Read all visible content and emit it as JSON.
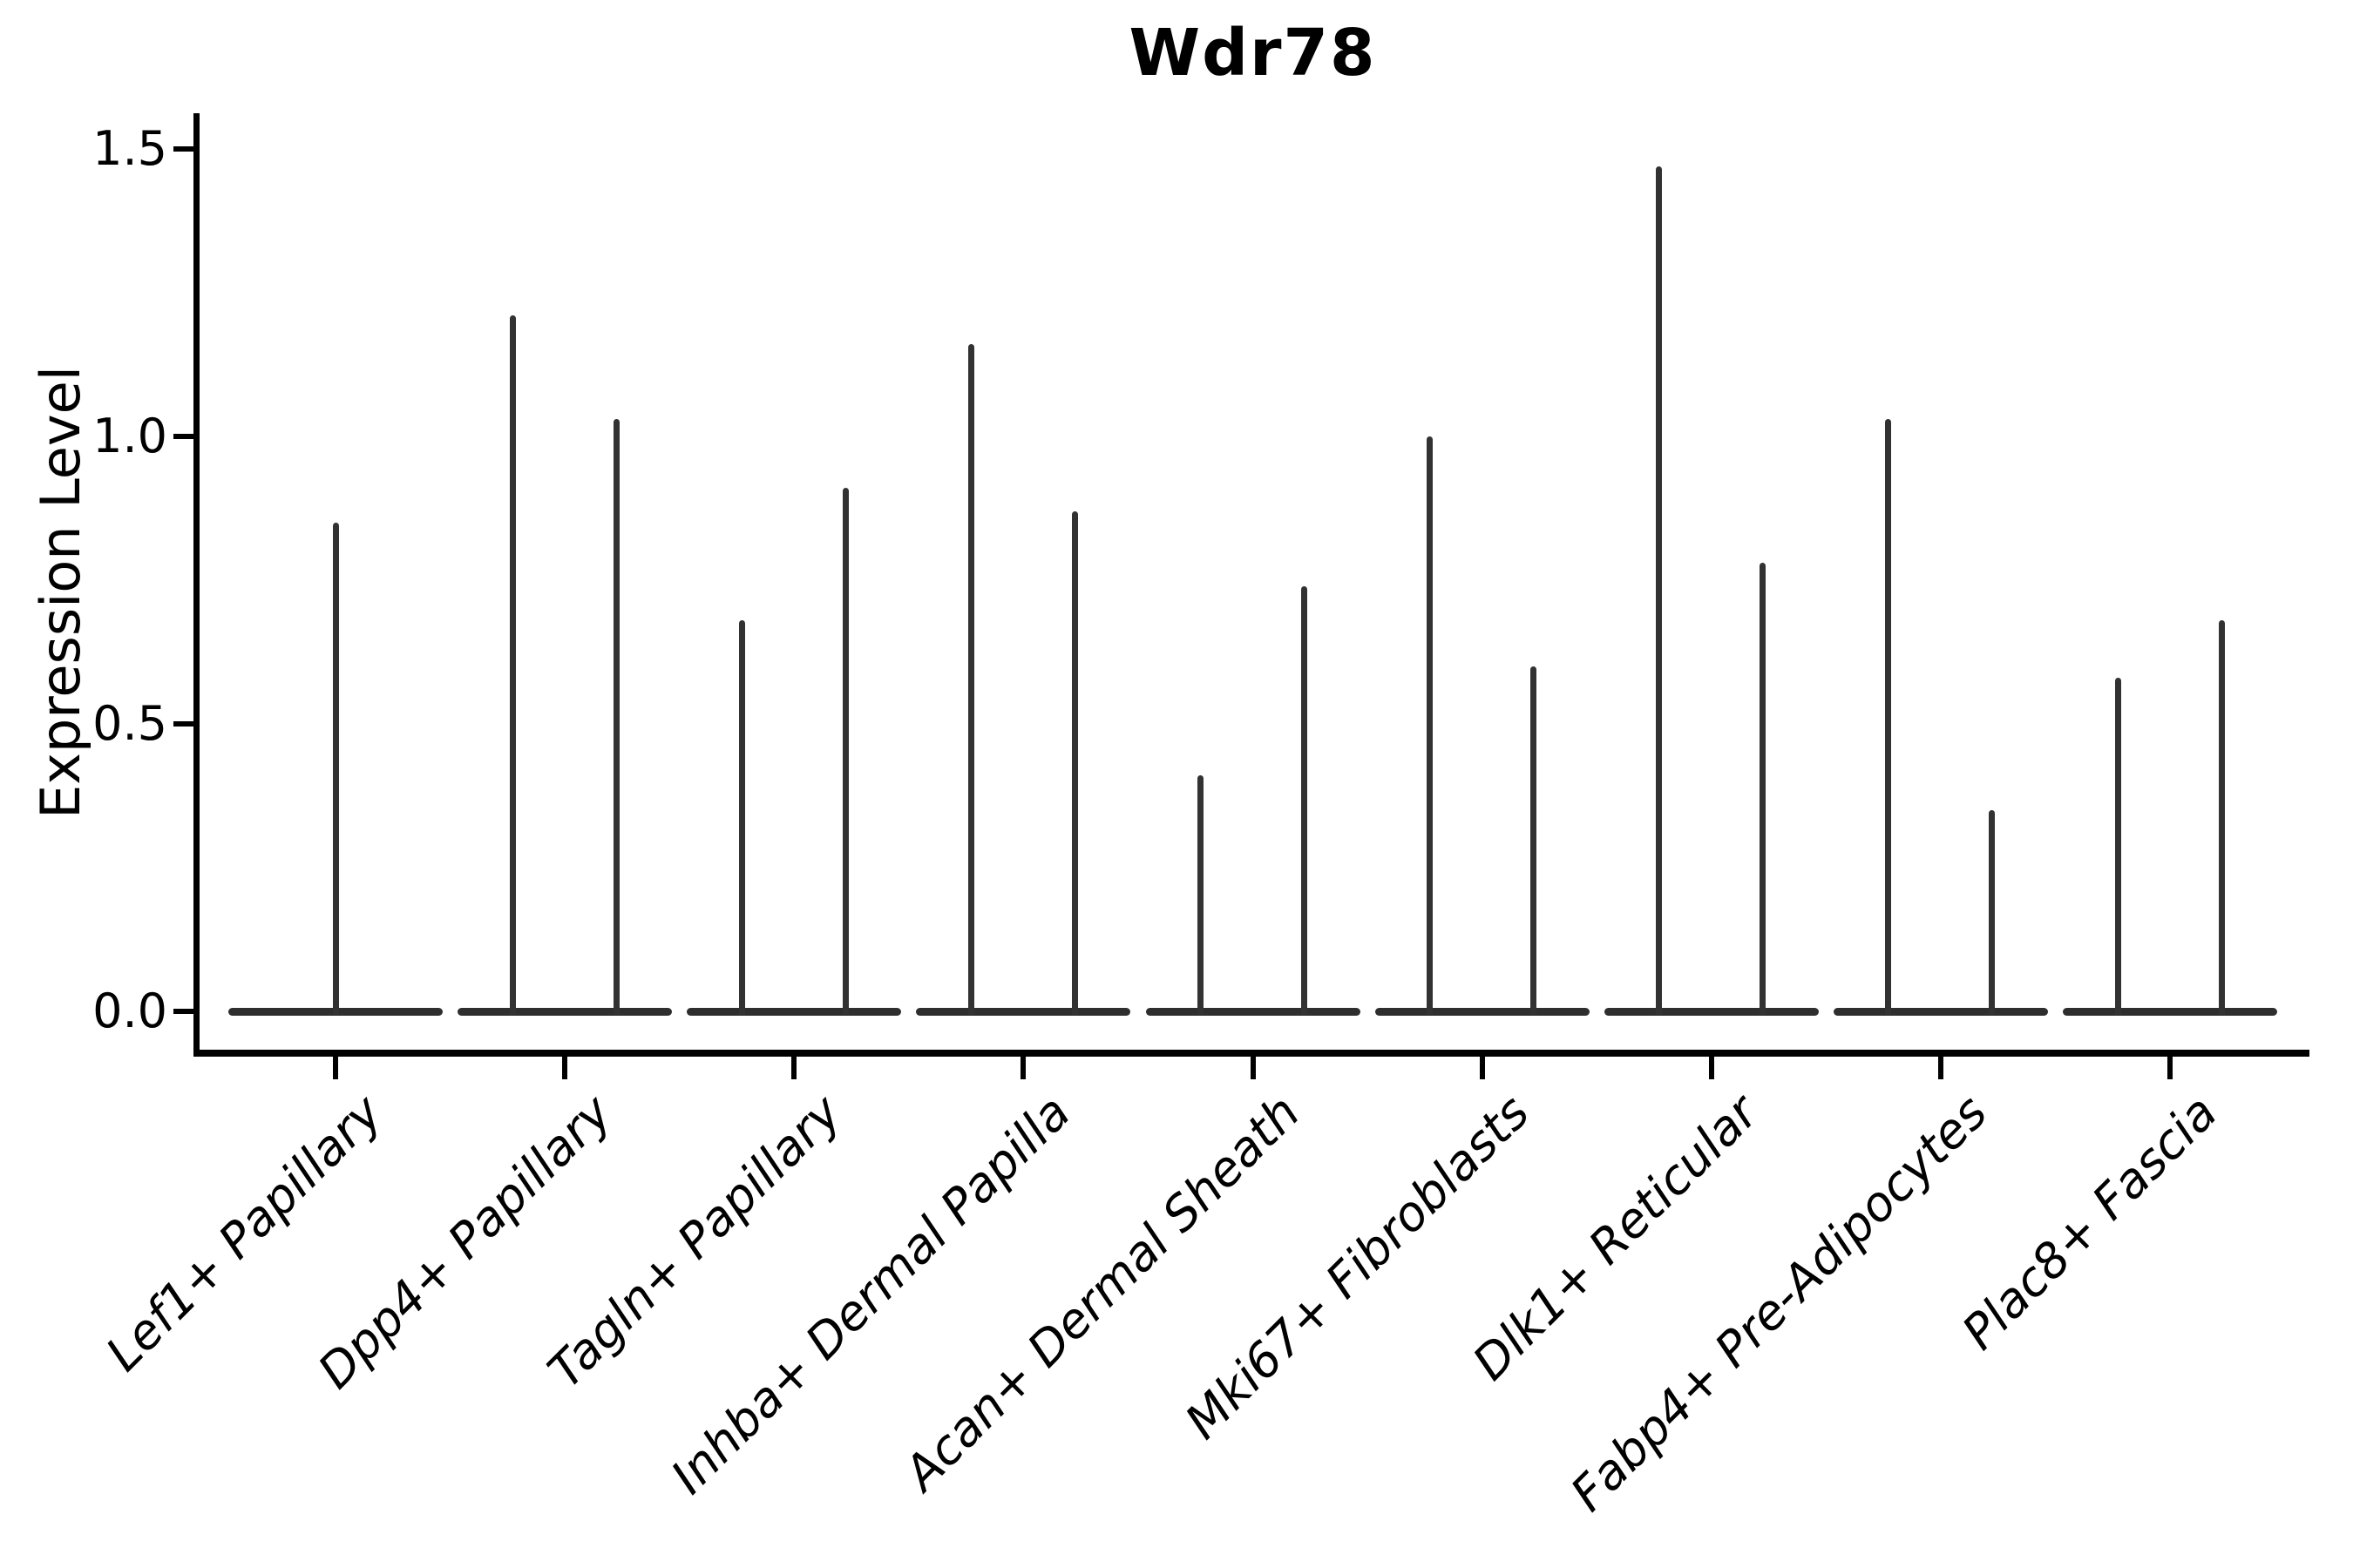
{
  "figure": {
    "title": "Wdr78"
  },
  "axes": {
    "y_label": "Expression Level",
    "y_tick_labels": [
      "0.0",
      "0.5",
      "1.0",
      "1.5"
    ],
    "x_tick_labels": [
      "Lef1+ Papillary",
      "Dpp4+ Papillary",
      "Tagln+ Papillary",
      "Inhba+ Dermal Papilla",
      "Acan+ Dermal Sheath",
      "Mki67+ Fibroblasts",
      "Dlk1+ Reticular",
      "Fabp4+ Pre-Adipocytes",
      "Plac8+ Fascia"
    ]
  },
  "colors": {
    "text": "#000000",
    "axis": "#000000",
    "violin_line": "#323232",
    "background": "#ffffff"
  },
  "chart_data": {
    "type": "violin",
    "title": "Wdr78",
    "xlabel": "",
    "ylabel": "Expression Level",
    "ylim": [
      0,
      1.55
    ],
    "y_ticks": [
      0.0,
      0.5,
      1.0,
      1.5
    ],
    "grid": false,
    "legend_position": "none",
    "style_note": "Near-zero-width violins: each appears as a flat dark bar at y=0 with thin vertical spikes rising to the maximum expression value; categories 2-9 contain a pair of sub-violins (two spikes), category 1 a single centered spike; x tick labels italic, rotated 45 degrees",
    "categories": [
      "Lef1+ Papillary",
      "Dpp4+ Papillary",
      "Tagln+ Papillary",
      "Inhba+ Dermal Papilla",
      "Acan+ Dermal Sheath",
      "Mki67+ Fibroblasts",
      "Dlk1+ Reticular",
      "Fabp4+ Pre-Adipocytes",
      "Plac8+ Fascia"
    ],
    "violins": [
      {
        "category": "Lef1+ Papillary",
        "spike_values": [
          0.85
        ]
      },
      {
        "category": "Dpp4+ Papillary",
        "spike_values": [
          1.21,
          1.03
        ]
      },
      {
        "category": "Tagln+ Papillary",
        "spike_values": [
          0.68,
          0.91
        ]
      },
      {
        "category": "Inhba+ Dermal Papilla",
        "spike_values": [
          1.16,
          0.87
        ]
      },
      {
        "category": "Acan+ Dermal Sheath",
        "spike_values": [
          0.41,
          0.74
        ]
      },
      {
        "category": "Mki67+ Fibroblasts",
        "spike_values": [
          1.0,
          0.6
        ]
      },
      {
        "category": "Dlk1+ Reticular",
        "spike_values": [
          1.47,
          0.78
        ]
      },
      {
        "category": "Fabp4+ Pre-Adipocytes",
        "spike_values": [
          1.03,
          0.35
        ]
      },
      {
        "category": "Plac8+ Fascia",
        "spike_values": [
          0.58,
          0.68
        ]
      }
    ]
  }
}
